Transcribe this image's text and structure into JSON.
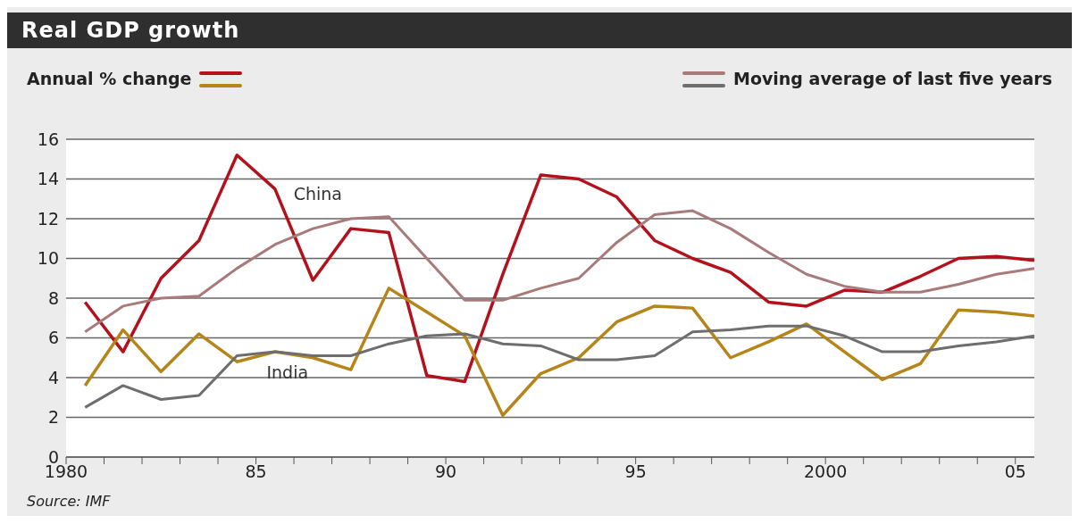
{
  "chart_data": {
    "type": "line",
    "title": "Real GDP growth",
    "x": [
      1980.5,
      1981.5,
      1982.5,
      1983.5,
      1984.5,
      1985.5,
      1986.5,
      1987.5,
      1988.5,
      1989.5,
      1990.5,
      1991.5,
      1992.5,
      1993.5,
      1994.5,
      1995.5,
      1996.5,
      1997.5,
      1998.5,
      1999.5,
      2000.5,
      2001.5,
      2002.5,
      2003.5,
      2004.5,
      2005.5
    ],
    "series": [
      {
        "name": "China",
        "color": "#b3121c",
        "values": [
          7.8,
          5.3,
          9.0,
          10.9,
          15.2,
          13.5,
          8.9,
          11.5,
          11.3,
          4.1,
          3.8,
          9.2,
          14.2,
          14.0,
          13.1,
          10.9,
          10.0,
          9.3,
          7.8,
          7.6,
          8.4,
          8.3,
          9.1,
          10.0,
          10.1,
          9.9
        ]
      },
      {
        "name": "India",
        "color": "#b5851a",
        "values": [
          3.6,
          6.4,
          4.3,
          6.2,
          4.8,
          5.3,
          5.0,
          4.4,
          8.5,
          7.3,
          6.1,
          2.1,
          4.2,
          5.0,
          6.8,
          7.6,
          7.5,
          5.0,
          5.8,
          6.7,
          5.3,
          3.9,
          4.7,
          7.4,
          7.3,
          7.1
        ]
      },
      {
        "color": "#a87a7a",
        "values": [
          6.3,
          7.6,
          8.0,
          8.1,
          9.5,
          10.7,
          11.5,
          12.0,
          12.1,
          10.0,
          7.9,
          7.9,
          8.5,
          9.0,
          10.8,
          12.2,
          12.4,
          11.5,
          10.3,
          9.2,
          8.6,
          8.3,
          8.3,
          8.7,
          9.2,
          9.5
        ]
      },
      {
        "color": "#6e6e6e",
        "values": [
          2.5,
          3.6,
          2.9,
          3.1,
          5.1,
          5.3,
          5.1,
          5.1,
          5.7,
          6.1,
          6.2,
          5.7,
          5.6,
          4.9,
          4.9,
          5.1,
          6.3,
          6.4,
          6.6,
          6.6,
          6.1,
          5.3,
          5.3,
          5.6,
          5.8,
          6.1
        ]
      }
    ],
    "xlim": [
      1980,
      2005.5
    ],
    "xticks": [
      1980,
      {
        "value": 1981,
        "label": null
      },
      {
        "value": 1982,
        "label": null
      },
      {
        "value": 1983,
        "label": null
      },
      {
        "value": 1984,
        "label": null
      },
      {
        "value": 1985,
        "label": "85"
      },
      {
        "value": 1986,
        "label": null
      },
      {
        "value": 1987,
        "label": null
      },
      {
        "value": 1988,
        "label": null
      },
      {
        "value": 1989,
        "label": null
      },
      {
        "value": 1990,
        "label": "90"
      },
      {
        "value": 1991,
        "label": null
      },
      {
        "value": 1992,
        "label": null
      },
      {
        "value": 1993,
        "label": null
      },
      {
        "value": 1994,
        "label": null
      },
      {
        "value": 1995,
        "label": "95"
      },
      {
        "value": 1996,
        "label": null
      },
      {
        "value": 1997,
        "label": null
      },
      {
        "value": 1998,
        "label": null
      },
      {
        "value": 1999,
        "label": null
      },
      2000,
      {
        "value": 2001,
        "label": null
      },
      {
        "value": 2002,
        "label": null
      },
      {
        "value": 2003,
        "label": null
      },
      {
        "value": 2004,
        "label": null
      },
      {
        "value": 2005,
        "label": "05"
      }
    ],
    "ylim": [
      0,
      16
    ],
    "yticks": [
      0,
      2,
      4,
      6,
      8,
      10,
      12,
      14,
      16
    ],
    "grid": "y",
    "annotations": [
      "Annual % change",
      "Moving average of last five years",
      "Source: IMF"
    ]
  }
}
